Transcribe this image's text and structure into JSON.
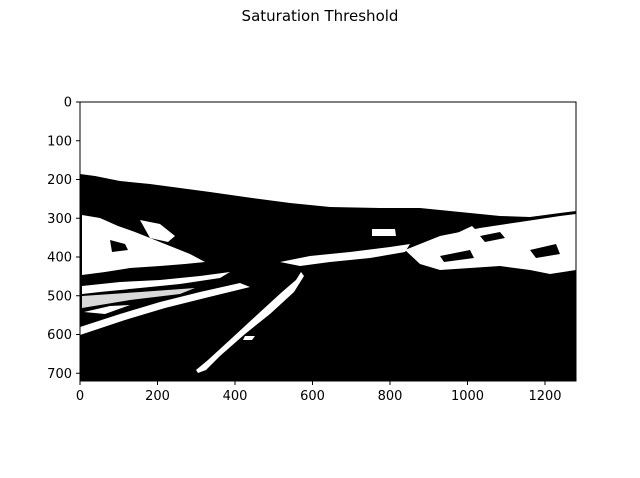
{
  "figure": {
    "title": "Saturation Threshold"
  },
  "axes": {
    "x_ticks": [
      0,
      200,
      400,
      600,
      800,
      1000,
      1200
    ],
    "y_ticks": [
      0,
      100,
      200,
      300,
      400,
      500,
      600,
      700
    ],
    "x_range": [
      0,
      1280
    ],
    "y_range": [
      720,
      0
    ],
    "y_inverted": true
  },
  "image": {
    "description_colors": {
      "background": "#000000",
      "foreground": "#ffffff"
    }
  }
}
